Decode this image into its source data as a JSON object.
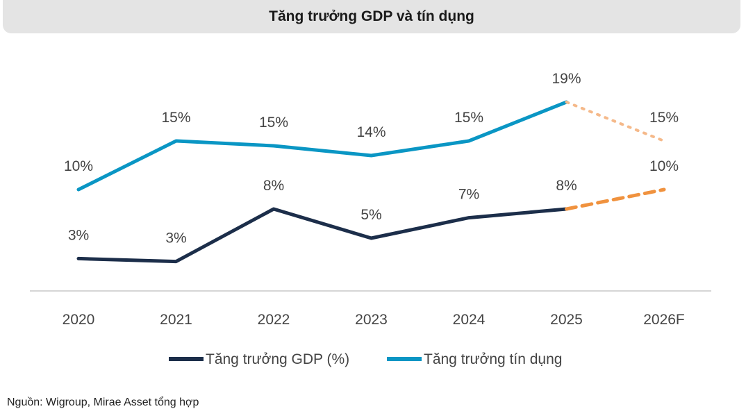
{
  "chart_data": {
    "type": "line",
    "title": "Tăng trưởng GDP và tín dụng",
    "categories": [
      "2020",
      "2021",
      "2022",
      "2023",
      "2024",
      "2025",
      "2026F"
    ],
    "series": [
      {
        "name": "Tăng trưởng GDP (%)",
        "color": "#1c2e4a",
        "forecast_color": "#f0923e",
        "values": [
          2.9,
          2.6,
          8.0,
          5.0,
          7.1,
          8.0,
          10.0
        ],
        "labels": [
          "3%",
          "3%",
          "8%",
          "5%",
          "7%",
          "8%",
          "10%"
        ]
      },
      {
        "name": "Tăng trưởng tín dụng",
        "color": "#0a96c4",
        "forecast_color": "#f5b98a",
        "values": [
          10.0,
          15.0,
          14.5,
          13.5,
          15.0,
          19.0,
          15.0
        ],
        "labels": [
          "10%",
          "15%",
          "15%",
          "14%",
          "15%",
          "19%",
          "15%"
        ]
      }
    ],
    "forecast_from_index": 5,
    "legend_position": "bottom",
    "grid": false
  },
  "source": "Nguồn: Wigroup, Mirae Asset tổng hợp"
}
